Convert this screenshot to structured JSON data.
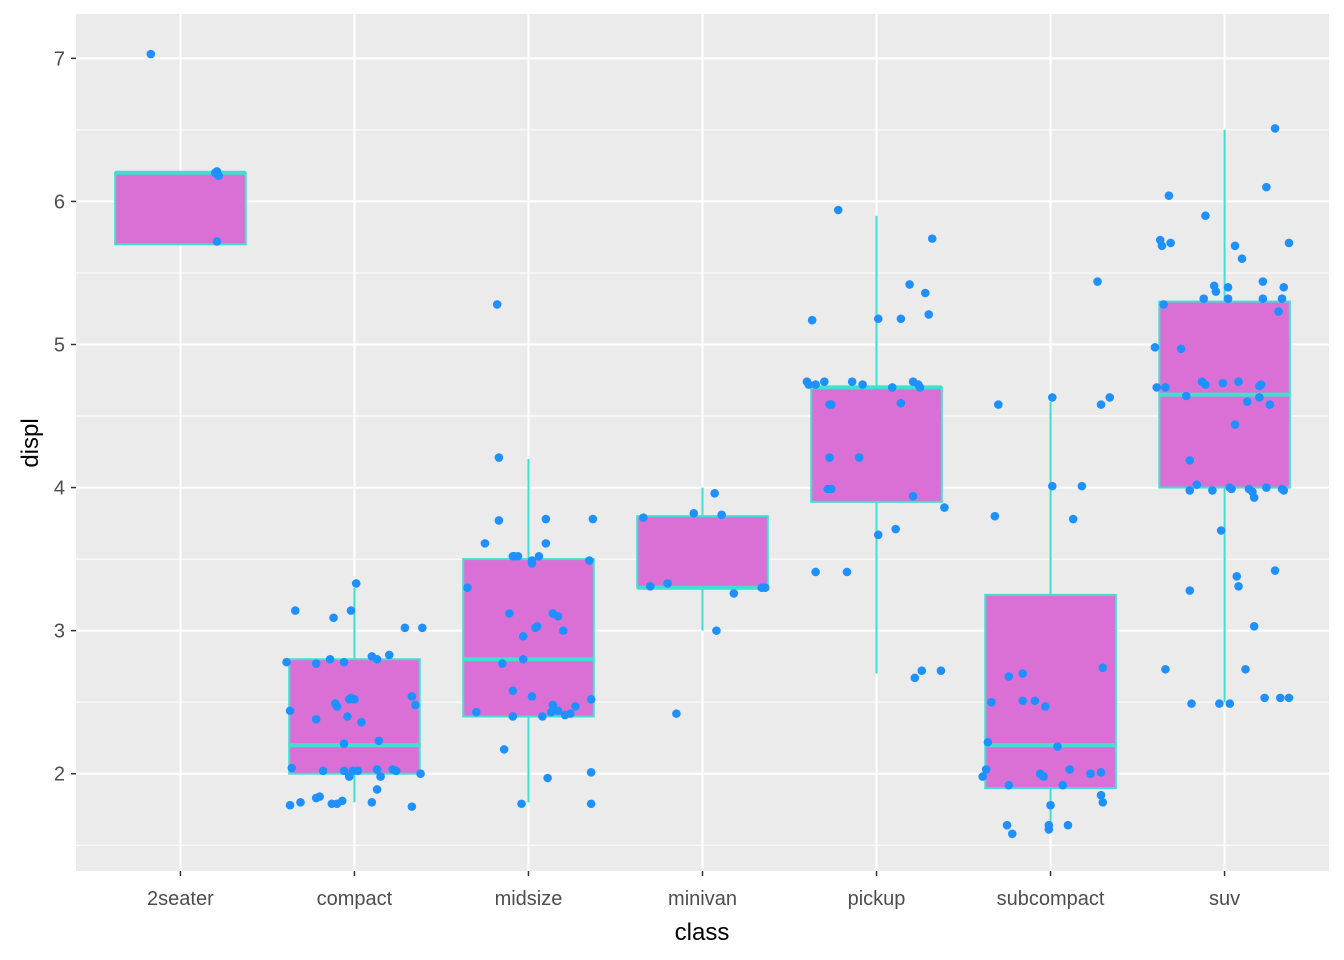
{
  "chart_data": {
    "type": "boxplot",
    "title": "",
    "xlabel": "class",
    "ylabel": "displ",
    "categories": [
      "2seater",
      "compact",
      "midsize",
      "minivan",
      "pickup",
      "subcompact",
      "suv"
    ],
    "xlim": [
      0.4,
      7.6
    ],
    "ylim": [
      1.32,
      7.31
    ],
    "y_ticks": [
      2,
      3,
      4,
      5,
      6,
      7
    ],
    "y_minor_ticks": [
      1.5,
      2.5,
      3.5,
      4.5,
      5.5,
      6.5
    ],
    "grid": true,
    "box_width": 0.75,
    "colors": {
      "panel_background": "#EBEBEB",
      "grid": "#FFFFFF",
      "box_fill": "#DA70D6",
      "box_outline": "#40E0D0",
      "points": "#1E90FF"
    },
    "boxes": [
      {
        "category": "2seater",
        "whisker_low": 5.7,
        "q1": 5.7,
        "median": 6.2,
        "q3": 6.2,
        "whisker_high": 6.2
      },
      {
        "category": "compact",
        "whisker_low": 1.8,
        "q1": 2.0,
        "median": 2.2,
        "q3": 2.8,
        "whisker_high": 3.3
      },
      {
        "category": "midsize",
        "whisker_low": 1.8,
        "q1": 2.4,
        "median": 2.8,
        "q3": 3.5,
        "whisker_high": 4.2
      },
      {
        "category": "minivan",
        "whisker_low": 3.0,
        "q1": 3.3,
        "median": 3.3,
        "q3": 3.8,
        "whisker_high": 4.0
      },
      {
        "category": "pickup",
        "whisker_low": 2.7,
        "q1": 3.9,
        "median": 4.7,
        "q3": 4.7,
        "whisker_high": 5.9
      },
      {
        "category": "subcompact",
        "whisker_low": 1.6,
        "q1": 1.9,
        "median": 2.2,
        "q3": 3.25,
        "whisker_high": 4.6
      },
      {
        "category": "suv",
        "whisker_low": 2.5,
        "q1": 4.0,
        "median": 4.65,
        "q3": 5.3,
        "whisker_high": 6.5
      }
    ],
    "points_note": "jittered points as [x offset from category in category units, displ]",
    "points": {
      "2seater": [
        [
          -0.17,
          7.03
        ],
        [
          0.21,
          6.21
        ],
        [
          0.22,
          6.18
        ],
        [
          0.21,
          5.72
        ],
        [
          0.2,
          6.2
        ]
      ],
      "compact": [
        [
          -0.34,
          3.14
        ],
        [
          -0.39,
          2.78
        ],
        [
          -0.37,
          2.44
        ],
        [
          -0.36,
          2.04
        ],
        [
          -0.37,
          1.78
        ],
        [
          -0.31,
          1.8
        ],
        [
          -0.22,
          1.83
        ],
        [
          -0.2,
          1.84
        ],
        [
          -0.22,
          2.38
        ],
        [
          -0.22,
          2.77
        ],
        [
          -0.14,
          2.8
        ],
        [
          -0.12,
          3.09
        ],
        [
          -0.11,
          2.49
        ],
        [
          -0.1,
          2.47
        ],
        [
          -0.18,
          2.02
        ],
        [
          -0.13,
          1.79
        ],
        [
          -0.1,
          1.79
        ],
        [
          -0.07,
          1.81
        ],
        [
          -0.06,
          2.02
        ],
        [
          -0.06,
          2.21
        ],
        [
          -0.04,
          2.4
        ],
        [
          -0.03,
          2.52
        ],
        [
          -0.02,
          2.53
        ],
        [
          0,
          2.52
        ],
        [
          -0.02,
          3.14
        ],
        [
          -0.06,
          2.78
        ],
        [
          -0.03,
          1.98
        ],
        [
          -0.01,
          2.02
        ],
        [
          0.01,
          3.33
        ],
        [
          0.02,
          2.02
        ],
        [
          0.04,
          2.36
        ],
        [
          0.1,
          2.82
        ],
        [
          0.13,
          2.8
        ],
        [
          0.15,
          1.98
        ],
        [
          0.13,
          2.03
        ],
        [
          0.14,
          2.23
        ],
        [
          0.13,
          1.89
        ],
        [
          0.1,
          1.8
        ],
        [
          0.2,
          2.83
        ],
        [
          0.22,
          2.03
        ],
        [
          0.24,
          2.02
        ],
        [
          0.29,
          3.02
        ],
        [
          0.33,
          2.54
        ],
        [
          0.33,
          1.77
        ],
        [
          0.35,
          2.48
        ],
        [
          0.38,
          2.0
        ],
        [
          0.39,
          3.02
        ]
      ],
      "midsize": [
        [
          -0.35,
          3.3
        ],
        [
          -0.18,
          5.28
        ],
        [
          -0.17,
          4.21
        ],
        [
          -0.17,
          3.77
        ],
        [
          -0.25,
          3.61
        ],
        [
          -0.3,
          2.43
        ],
        [
          -0.15,
          2.77
        ],
        [
          -0.14,
          2.17
        ],
        [
          -0.11,
          3.12
        ],
        [
          -0.09,
          2.58
        ],
        [
          -0.09,
          3.52
        ],
        [
          -0.06,
          3.52
        ],
        [
          -0.08,
          3.52
        ],
        [
          -0.03,
          2.96
        ],
        [
          -0.03,
          2.8
        ],
        [
          -0.04,
          1.79
        ],
        [
          0.02,
          3.47
        ],
        [
          0.02,
          2.54
        ],
        [
          0.04,
          3.02
        ],
        [
          0.05,
          3.03
        ],
        [
          0.06,
          3.52
        ],
        [
          0.1,
          3.61
        ],
        [
          0.1,
          3.78
        ],
        [
          0.08,
          2.4
        ],
        [
          0.13,
          2.43
        ],
        [
          0.14,
          3.12
        ],
        [
          0.17,
          3.1
        ],
        [
          0.11,
          1.97
        ],
        [
          0.14,
          2.48
        ],
        [
          0.17,
          2.44
        ],
        [
          0.2,
          3.0
        ],
        [
          0.21,
          2.41
        ],
        [
          0.24,
          2.42
        ],
        [
          0.27,
          2.47
        ],
        [
          0.35,
          3.49
        ],
        [
          0.37,
          3.78
        ],
        [
          0.36,
          2.52
        ],
        [
          0.36,
          2.01
        ],
        [
          0.36,
          1.79
        ],
        [
          -0.09,
          2.4
        ],
        [
          0.02,
          3.49
        ]
      ],
      "minivan": [
        [
          -0.34,
          3.79
        ],
        [
          -0.3,
          3.31
        ],
        [
          -0.2,
          3.33
        ],
        [
          -0.15,
          2.42
        ],
        [
          -0.05,
          3.82
        ],
        [
          0.07,
          3.96
        ],
        [
          0.08,
          3.0
        ],
        [
          0.11,
          3.81
        ],
        [
          0.18,
          3.26
        ],
        [
          0.34,
          3.3
        ],
        [
          0.36,
          3.3
        ]
      ],
      "pickup": [
        [
          -0.37,
          5.17
        ],
        [
          -0.4,
          4.74
        ],
        [
          -0.39,
          4.72
        ],
        [
          -0.35,
          4.72
        ],
        [
          -0.3,
          4.74
        ],
        [
          -0.27,
          4.58
        ],
        [
          -0.26,
          4.58
        ],
        [
          -0.27,
          4.21
        ],
        [
          -0.28,
          3.99
        ],
        [
          -0.26,
          3.99
        ],
        [
          -0.35,
          3.41
        ],
        [
          -0.22,
          5.94
        ],
        [
          -0.17,
          3.41
        ],
        [
          -0.14,
          4.74
        ],
        [
          -0.08,
          4.72
        ],
        [
          -0.1,
          4.21
        ],
        [
          0.01,
          5.18
        ],
        [
          0.01,
          3.67
        ],
        [
          0.09,
          4.7
        ],
        [
          0.11,
          3.71
        ],
        [
          0.14,
          5.18
        ],
        [
          0.14,
          4.59
        ],
        [
          0.19,
          5.42
        ],
        [
          0.21,
          4.74
        ],
        [
          0.24,
          4.72
        ],
        [
          0.25,
          4.7
        ],
        [
          0.21,
          3.94
        ],
        [
          0.28,
          5.36
        ],
        [
          0.3,
          5.21
        ],
        [
          0.32,
          5.74
        ],
        [
          0.22,
          2.67
        ],
        [
          0.26,
          2.72
        ],
        [
          0.37,
          2.72
        ],
        [
          0.39,
          3.86
        ]
      ],
      "subcompact": [
        [
          -0.3,
          4.58
        ],
        [
          -0.32,
          3.8
        ],
        [
          -0.34,
          2.5
        ],
        [
          -0.36,
          2.22
        ],
        [
          -0.37,
          2.03
        ],
        [
          -0.39,
          1.98
        ],
        [
          -0.24,
          1.92
        ],
        [
          -0.25,
          1.64
        ],
        [
          -0.22,
          1.58
        ],
        [
          -0.24,
          2.68
        ],
        [
          -0.16,
          2.7
        ],
        [
          -0.16,
          2.51
        ],
        [
          -0.09,
          2.51
        ],
        [
          -0.03,
          2.47
        ],
        [
          -0.06,
          2.0
        ],
        [
          -0.04,
          1.98
        ],
        [
          0.04,
          2.19
        ],
        [
          0.01,
          4.63
        ],
        [
          0.01,
          4.01
        ],
        [
          0,
          1.78
        ],
        [
          -0.01,
          1.64
        ],
        [
          -0.01,
          1.61
        ],
        [
          0.07,
          1.92
        ],
        [
          0.11,
          2.03
        ],
        [
          0.1,
          1.64
        ],
        [
          0.13,
          3.78
        ],
        [
          0.18,
          4.01
        ],
        [
          0.27,
          5.44
        ],
        [
          0.29,
          4.58
        ],
        [
          0.34,
          4.63
        ],
        [
          0.3,
          2.74
        ],
        [
          0.23,
          2.0
        ],
        [
          0.29,
          2.01
        ],
        [
          0.29,
          1.85
        ],
        [
          0.3,
          1.8
        ]
      ],
      "suv": [
        [
          -0.4,
          4.98
        ],
        [
          -0.39,
          4.7
        ],
        [
          -0.37,
          5.73
        ],
        [
          -0.36,
          5.69
        ],
        [
          -0.35,
          5.28
        ],
        [
          -0.32,
          6.04
        ],
        [
          -0.34,
          2.73
        ],
        [
          -0.34,
          4.7
        ],
        [
          -0.31,
          5.71
        ],
        [
          -0.25,
          4.97
        ],
        [
          -0.22,
          4.64
        ],
        [
          -0.2,
          3.28
        ],
        [
          -0.2,
          4.19
        ],
        [
          -0.2,
          3.98
        ],
        [
          -0.19,
          2.49
        ],
        [
          -0.16,
          4.02
        ],
        [
          -0.12,
          5.32
        ],
        [
          -0.11,
          5.9
        ],
        [
          -0.13,
          4.74
        ],
        [
          -0.11,
          4.72
        ],
        [
          -0.07,
          3.98
        ],
        [
          -0.06,
          5.41
        ],
        [
          -0.05,
          5.37
        ],
        [
          -0.03,
          2.49
        ],
        [
          -0.02,
          3.7
        ],
        [
          -0.01,
          4.73
        ],
        [
          0.02,
          5.32
        ],
        [
          0.02,
          5.4
        ],
        [
          0.03,
          4.0
        ],
        [
          0.03,
          2.49
        ],
        [
          0.04,
          3.99
        ],
        [
          0.06,
          5.69
        ],
        [
          0.06,
          4.44
        ],
        [
          0.07,
          3.38
        ],
        [
          0.08,
          3.31
        ],
        [
          0.1,
          5.6
        ],
        [
          0.08,
          4.74
        ],
        [
          0.12,
          2.73
        ],
        [
          0.13,
          4.6
        ],
        [
          0.14,
          3.99
        ],
        [
          0.16,
          3.97
        ],
        [
          0.17,
          3.03
        ],
        [
          0.17,
          3.93
        ],
        [
          0.2,
          4.71
        ],
        [
          0.2,
          4.63
        ],
        [
          0.22,
          5.32
        ],
        [
          0.22,
          5.44
        ],
        [
          0.24,
          6.1
        ],
        [
          0.23,
          2.53
        ],
        [
          0.24,
          4.0
        ],
        [
          0.26,
          4.58
        ],
        [
          0.29,
          6.51
        ],
        [
          0.29,
          3.42
        ],
        [
          0.31,
          5.23
        ],
        [
          0.32,
          2.53
        ],
        [
          0.33,
          3.99
        ],
        [
          0.34,
          3.98
        ],
        [
          0.33,
          5.32
        ],
        [
          0.34,
          5.4
        ],
        [
          0.37,
          5.71
        ],
        [
          0.37,
          2.53
        ],
        [
          0.21,
          4.72
        ]
      ]
    }
  }
}
